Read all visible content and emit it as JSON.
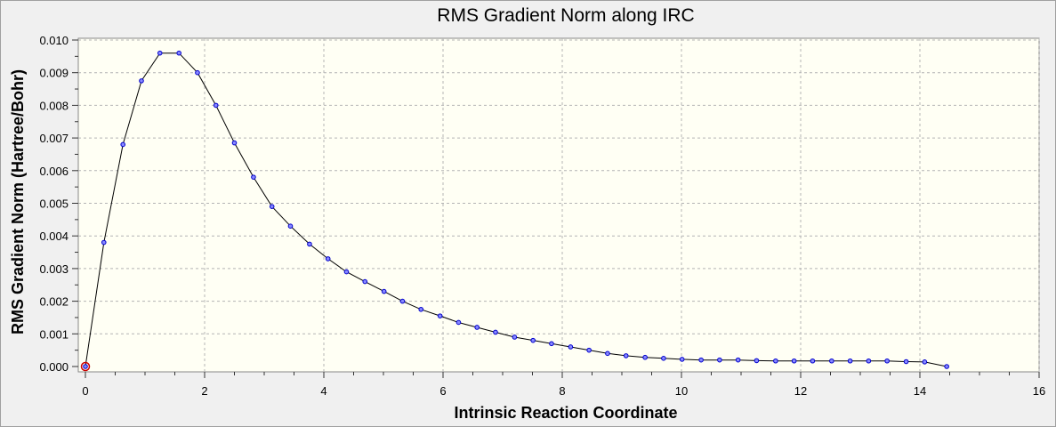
{
  "chart_data": {
    "type": "line",
    "title": "RMS Gradient Norm along IRC",
    "xlabel": "Intrinsic Reaction Coordinate",
    "ylabel": "RMS Gradient Norm (Hartree/Bohr)",
    "xlim": [
      0,
      16
    ],
    "ylim": [
      0,
      0.01
    ],
    "xticks": [
      "0",
      "2",
      "4",
      "6",
      "8",
      "10",
      "12",
      "14",
      "16"
    ],
    "yticks": [
      "0.000",
      "0.001",
      "0.002",
      "0.003",
      "0.004",
      "0.005",
      "0.006",
      "0.007",
      "0.008",
      "0.009",
      "0.010"
    ],
    "grid": true,
    "legend": "none",
    "series": [
      {
        "color": "#000000",
        "marker_color": "#0000cc",
        "x": [
          0,
          0.31,
          0.63,
          0.94,
          1.25,
          1.57,
          1.88,
          2.19,
          2.5,
          2.82,
          3.13,
          3.44,
          3.76,
          4.07,
          4.38,
          4.69,
          5.01,
          5.32,
          5.63,
          5.95,
          6.26,
          6.57,
          6.88,
          7.2,
          7.51,
          7.82,
          8.14,
          8.45,
          8.76,
          9.07,
          9.39,
          9.7,
          10.01,
          10.33,
          10.64,
          10.95,
          11.26,
          11.58,
          11.89,
          12.2,
          12.52,
          12.83,
          13.14,
          13.45,
          13.77,
          14.08,
          14.45
        ],
        "y": [
          0,
          0.0038,
          0.0068,
          0.00875,
          0.0096,
          0.0096,
          0.009,
          0.008,
          0.00685,
          0.0058,
          0.0049,
          0.0043,
          0.00375,
          0.0033,
          0.0029,
          0.0026,
          0.0023,
          0.002,
          0.00175,
          0.00155,
          0.00135,
          0.0012,
          0.00105,
          0.0009,
          0.0008,
          0.0007,
          0.0006,
          0.0005,
          0.0004,
          0.00033,
          0.00028,
          0.00025,
          0.00022,
          0.0002,
          0.0002,
          0.0002,
          0.00018,
          0.00017,
          0.00017,
          0.00017,
          0.00017,
          0.00017,
          0.00017,
          0.00017,
          0.00015,
          0.00014,
          0
        ]
      }
    ],
    "highlight_point": {
      "x": 0,
      "y": 0,
      "color": "#cc0000"
    }
  }
}
